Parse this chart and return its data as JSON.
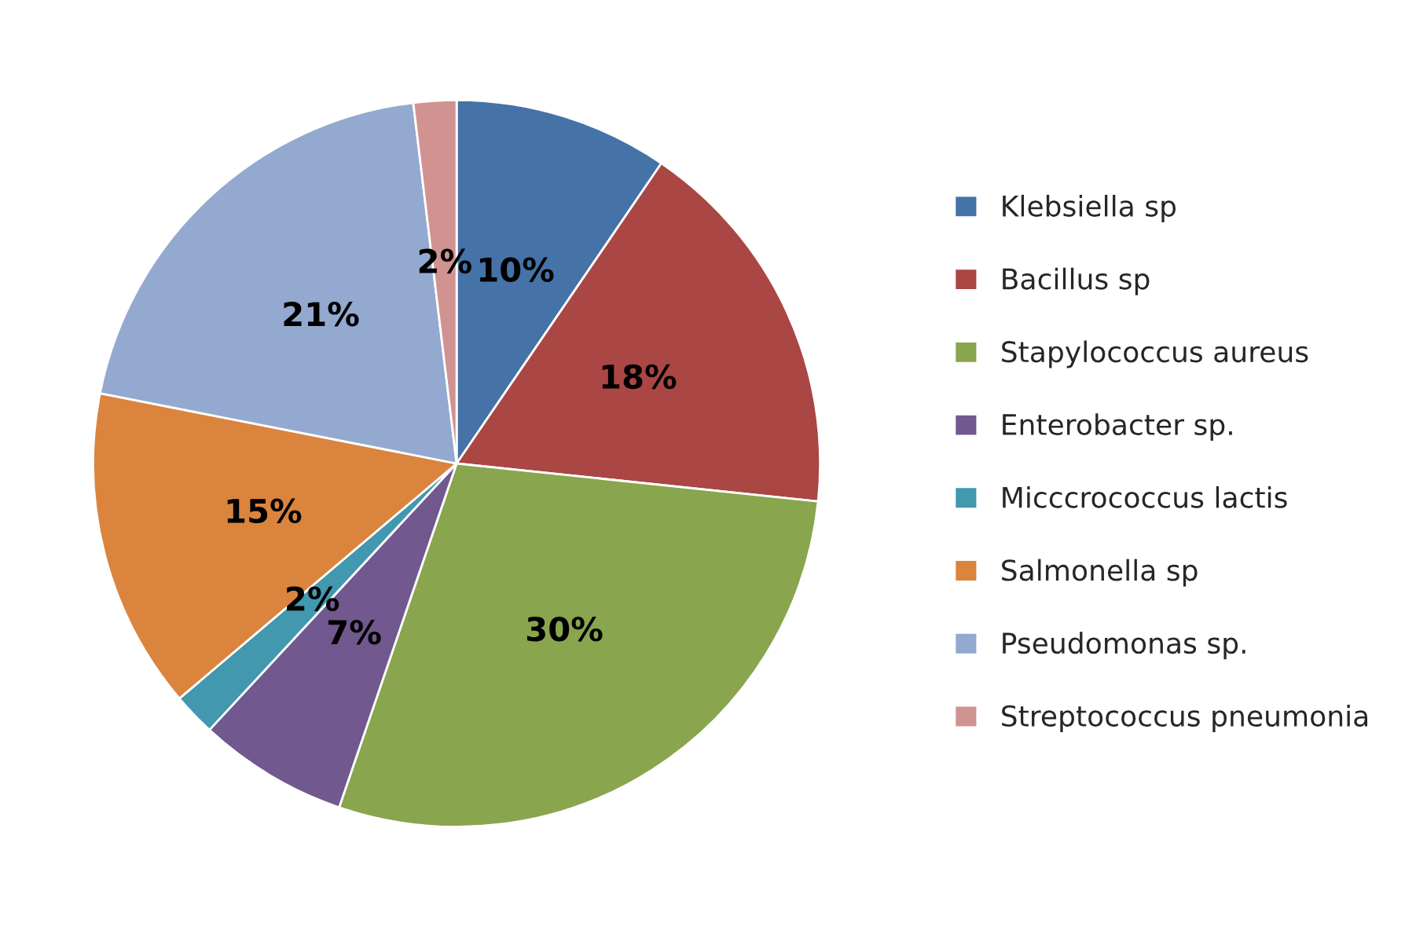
{
  "chart_data": {
    "type": "pie",
    "categories": [
      "Klebsiella sp",
      "Bacillus sp",
      "Stapylococcus aureus",
      "Enterobacter sp.",
      "Micccrococcus lactis",
      "Salmonella sp",
      "Pseudomonas sp.",
      "Streptococcus pneumonia"
    ],
    "values": [
      10,
      18,
      30,
      7,
      2,
      15,
      21,
      2
    ],
    "value_labels": [
      "10%",
      "18%",
      "30%",
      "7%",
      "2%",
      "15%",
      "21%",
      "2%"
    ],
    "colors": [
      "#4572a7",
      "#aa4643",
      "#89a54e",
      "#71588f",
      "#4198af",
      "#db843d",
      "#93a9cf",
      "#d19392"
    ],
    "legend": "right"
  }
}
